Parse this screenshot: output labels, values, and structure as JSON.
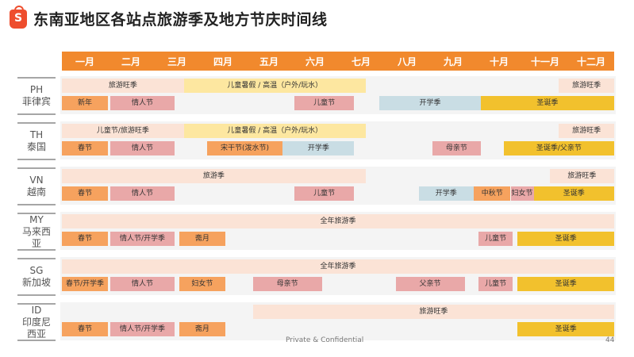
{
  "title": "东南亚地区各站点旅游季及地方节庆时间线",
  "logo_letter": "S",
  "months": [
    "一月",
    "二月",
    "三月",
    "四月",
    "五月",
    "六月",
    "七月",
    "八月",
    "九月",
    "十月",
    "十一月",
    "十二月"
  ],
  "colors": {
    "header": "#f1892d",
    "peach": "#fbe3d6",
    "yellow": "#fde7a0",
    "orange": "#f6a25e",
    "pink": "#e9a8a8",
    "blue": "#c9dde4",
    "gold": "#f2c12d"
  },
  "regions": [
    {
      "code": "PH",
      "name": "菲律宾",
      "bars": [
        {
          "label": "旅游旺季",
          "start": 0,
          "end": 2.65,
          "lane": 0,
          "color": "peach"
        },
        {
          "label": "儿童暑假 / 高温（户外/玩水）",
          "start": 2.65,
          "end": 6.6,
          "lane": 0,
          "color": "yellow"
        },
        {
          "label": "旅游旺季",
          "start": 10.8,
          "end": 12,
          "lane": 0,
          "color": "peach"
        },
        {
          "label": "新年",
          "start": 0,
          "end": 1,
          "lane": 1,
          "color": "orange"
        },
        {
          "label": "情人节",
          "start": 1.05,
          "end": 2.45,
          "lane": 1,
          "color": "pink"
        },
        {
          "label": "儿童节",
          "start": 5.05,
          "end": 6.35,
          "lane": 1,
          "color": "pink"
        },
        {
          "label": "开学季",
          "start": 6.9,
          "end": 9.1,
          "lane": 1,
          "color": "blue"
        },
        {
          "label": "圣诞季",
          "start": 9.1,
          "end": 12,
          "lane": 1,
          "color": "gold"
        }
      ]
    },
    {
      "code": "TH",
      "name": "泰国",
      "bars": [
        {
          "label": "儿童节/旅游旺季",
          "start": 0,
          "end": 2.65,
          "lane": 0,
          "color": "peach"
        },
        {
          "label": "儿童暑假 / 高温（户外/玩水）",
          "start": 2.65,
          "end": 6.6,
          "lane": 0,
          "color": "yellow"
        },
        {
          "label": "旅游旺季",
          "start": 10.8,
          "end": 12,
          "lane": 0,
          "color": "peach"
        },
        {
          "label": "春节",
          "start": 0,
          "end": 1,
          "lane": 1,
          "color": "orange"
        },
        {
          "label": "情人节",
          "start": 1.05,
          "end": 2.45,
          "lane": 1,
          "color": "pink"
        },
        {
          "label": "宋干节(泼水节)",
          "start": 3.15,
          "end": 4.8,
          "lane": 1,
          "color": "orange"
        },
        {
          "label": "开学季",
          "start": 4.8,
          "end": 6.35,
          "lane": 1,
          "color": "blue"
        },
        {
          "label": "母亲节",
          "start": 8.05,
          "end": 9.1,
          "lane": 1,
          "color": "pink"
        },
        {
          "label": "圣诞季/父亲节",
          "start": 9.6,
          "end": 12,
          "lane": 1,
          "color": "gold"
        }
      ]
    },
    {
      "code": "VN",
      "name": "越南",
      "bars": [
        {
          "label": "旅游季",
          "start": 0,
          "end": 6.6,
          "lane": 0,
          "color": "peach"
        },
        {
          "label": "旅游旺季",
          "start": 10.6,
          "end": 12,
          "lane": 0,
          "color": "peach"
        },
        {
          "label": "春节",
          "start": 0,
          "end": 1,
          "lane": 1,
          "color": "orange"
        },
        {
          "label": "情人节",
          "start": 1.05,
          "end": 2.45,
          "lane": 1,
          "color": "pink"
        },
        {
          "label": "儿童节",
          "start": 5.05,
          "end": 6.35,
          "lane": 1,
          "color": "pink"
        },
        {
          "label": "开学季",
          "start": 7.75,
          "end": 8.95,
          "lane": 1,
          "color": "blue"
        },
        {
          "label": "中秋节",
          "start": 8.95,
          "end": 9.75,
          "lane": 1,
          "color": "orange"
        },
        {
          "label": "妇女节",
          "start": 9.75,
          "end": 10.25,
          "lane": 1,
          "color": "pink"
        },
        {
          "label": "圣诞季",
          "start": 10.25,
          "end": 12,
          "lane": 1,
          "color": "gold"
        }
      ]
    },
    {
      "code": "MY",
      "name": "马来西亚",
      "bars": [
        {
          "label": "全年旅游季",
          "start": 0,
          "end": 12,
          "lane": 0,
          "color": "peach"
        },
        {
          "label": "春节",
          "start": 0,
          "end": 1,
          "lane": 1,
          "color": "orange"
        },
        {
          "label": "情人节/开学季",
          "start": 1.05,
          "end": 2.45,
          "lane": 1,
          "color": "pink"
        },
        {
          "label": "斋月",
          "start": 2.55,
          "end": 3.55,
          "lane": 1,
          "color": "orange"
        },
        {
          "label": "儿童节",
          "start": 9.05,
          "end": 9.8,
          "lane": 1,
          "color": "pink"
        },
        {
          "label": "圣诞季",
          "start": 9.9,
          "end": 12,
          "lane": 1,
          "color": "gold"
        }
      ]
    },
    {
      "code": "SG",
      "name": "新加坡",
      "bars": [
        {
          "label": "全年旅游季",
          "start": 0,
          "end": 12,
          "lane": 0,
          "color": "peach"
        },
        {
          "label": "春节/开学季",
          "start": 0,
          "end": 1,
          "lane": 1,
          "color": "orange"
        },
        {
          "label": "情人节",
          "start": 1.05,
          "end": 2.45,
          "lane": 1,
          "color": "pink"
        },
        {
          "label": "妇女节",
          "start": 2.55,
          "end": 3.55,
          "lane": 1,
          "color": "orange"
        },
        {
          "label": "母亲节",
          "start": 4.15,
          "end": 5.65,
          "lane": 1,
          "color": "pink"
        },
        {
          "label": "父亲节",
          "start": 7.25,
          "end": 8.75,
          "lane": 1,
          "color": "pink"
        },
        {
          "label": "儿童节",
          "start": 9.05,
          "end": 9.8,
          "lane": 1,
          "color": "pink"
        },
        {
          "label": "圣诞季",
          "start": 9.9,
          "end": 12,
          "lane": 1,
          "color": "gold"
        }
      ]
    },
    {
      "code": "ID",
      "name": "印度尼西亚",
      "bars": [
        {
          "label": "旅游旺季",
          "start": 4.15,
          "end": 12,
          "lane": 0,
          "color": "peach"
        },
        {
          "label": "春节",
          "start": 0,
          "end": 1,
          "lane": 1,
          "color": "orange"
        },
        {
          "label": "情人节/开学季",
          "start": 1.05,
          "end": 2.45,
          "lane": 1,
          "color": "pink"
        },
        {
          "label": "斋月",
          "start": 2.55,
          "end": 3.55,
          "lane": 1,
          "color": "orange"
        },
        {
          "label": "圣诞季",
          "start": 9.9,
          "end": 12,
          "lane": 1,
          "color": "gold"
        }
      ]
    }
  ],
  "footer": "Private & Confidential",
  "page_number": "44"
}
